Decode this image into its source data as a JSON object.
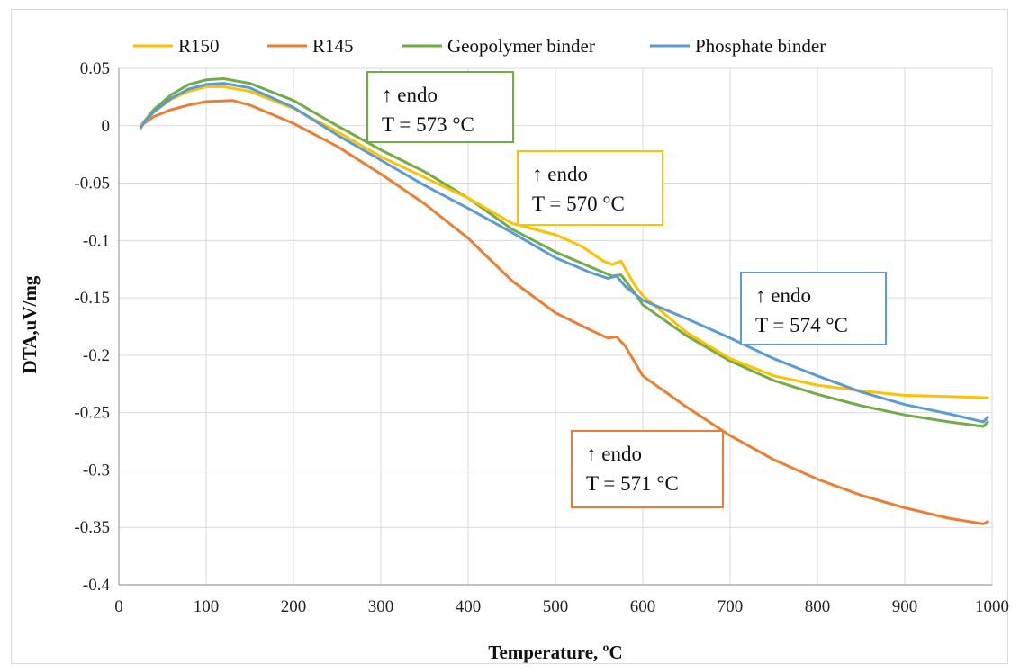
{
  "chart_data": {
    "type": "line",
    "title": "",
    "xlabel": "Temperature, ºC",
    "ylabel": "DTA,uV/mg",
    "xlim": [
      0,
      1000
    ],
    "ylim": [
      -0.4,
      0.05
    ],
    "x_ticks": [
      "0",
      "100",
      "200",
      "300",
      "400",
      "500",
      "600",
      "700",
      "800",
      "900",
      "1000"
    ],
    "y_ticks": [
      "0.05",
      "0",
      "-0.05",
      "-0.1",
      "-0.15",
      "-0.2",
      "-0.25",
      "-0.3",
      "-0.35",
      "-0.4"
    ],
    "grid": true,
    "legend_position": "top",
    "series": [
      {
        "name": "R150",
        "color": "#FFC000",
        "points": [
          [
            25,
            0.0
          ],
          [
            40,
            0.012
          ],
          [
            60,
            0.023
          ],
          [
            80,
            0.03
          ],
          [
            100,
            0.034
          ],
          [
            120,
            0.034
          ],
          [
            150,
            0.03
          ],
          [
            200,
            0.015
          ],
          [
            250,
            -0.005
          ],
          [
            300,
            -0.027
          ],
          [
            350,
            -0.045
          ],
          [
            400,
            -0.063
          ],
          [
            450,
            -0.085
          ],
          [
            500,
            -0.095
          ],
          [
            530,
            -0.105
          ],
          [
            555,
            -0.118
          ],
          [
            565,
            -0.121
          ],
          [
            575,
            -0.118
          ],
          [
            590,
            -0.138
          ],
          [
            600,
            -0.148
          ],
          [
            650,
            -0.18
          ],
          [
            700,
            -0.203
          ],
          [
            750,
            -0.218
          ],
          [
            800,
            -0.226
          ],
          [
            850,
            -0.231
          ],
          [
            900,
            -0.235
          ],
          [
            950,
            -0.236
          ],
          [
            995,
            -0.237
          ]
        ]
      },
      {
        "name": "R145",
        "color": "#ED7D31",
        "points": [
          [
            25,
            0.0
          ],
          [
            40,
            0.008
          ],
          [
            60,
            0.014
          ],
          [
            80,
            0.018
          ],
          [
            100,
            0.021
          ],
          [
            130,
            0.022
          ],
          [
            150,
            0.018
          ],
          [
            200,
            0.002
          ],
          [
            250,
            -0.018
          ],
          [
            300,
            -0.042
          ],
          [
            350,
            -0.068
          ],
          [
            400,
            -0.098
          ],
          [
            450,
            -0.135
          ],
          [
            500,
            -0.163
          ],
          [
            540,
            -0.178
          ],
          [
            560,
            -0.185
          ],
          [
            570,
            -0.184
          ],
          [
            580,
            -0.192
          ],
          [
            600,
            -0.218
          ],
          [
            650,
            -0.245
          ],
          [
            700,
            -0.27
          ],
          [
            750,
            -0.291
          ],
          [
            800,
            -0.308
          ],
          [
            850,
            -0.322
          ],
          [
            900,
            -0.333
          ],
          [
            950,
            -0.342
          ],
          [
            990,
            -0.347
          ],
          [
            995,
            -0.345
          ]
        ]
      },
      {
        "name": "Geopolymer binder",
        "color": "#70AD47",
        "points": [
          [
            25,
            0.0
          ],
          [
            40,
            0.014
          ],
          [
            60,
            0.027
          ],
          [
            80,
            0.036
          ],
          [
            100,
            0.04
          ],
          [
            120,
            0.041
          ],
          [
            150,
            0.037
          ],
          [
            200,
            0.022
          ],
          [
            250,
            0.0
          ],
          [
            300,
            -0.021
          ],
          [
            350,
            -0.04
          ],
          [
            400,
            -0.063
          ],
          [
            450,
            -0.09
          ],
          [
            500,
            -0.11
          ],
          [
            540,
            -0.123
          ],
          [
            565,
            -0.131
          ],
          [
            575,
            -0.13
          ],
          [
            590,
            -0.145
          ],
          [
            600,
            -0.156
          ],
          [
            650,
            -0.183
          ],
          [
            700,
            -0.205
          ],
          [
            750,
            -0.222
          ],
          [
            800,
            -0.234
          ],
          [
            850,
            -0.244
          ],
          [
            900,
            -0.252
          ],
          [
            950,
            -0.258
          ],
          [
            990,
            -0.262
          ],
          [
            995,
            -0.258
          ]
        ]
      },
      {
        "name": "Phosphate binder",
        "color": "#5B9BD5",
        "points": [
          [
            25,
            -0.002
          ],
          [
            30,
            0.004
          ],
          [
            40,
            0.012
          ],
          [
            60,
            0.024
          ],
          [
            80,
            0.032
          ],
          [
            100,
            0.036
          ],
          [
            120,
            0.037
          ],
          [
            150,
            0.033
          ],
          [
            200,
            0.016
          ],
          [
            250,
            -0.008
          ],
          [
            300,
            -0.03
          ],
          [
            350,
            -0.052
          ],
          [
            400,
            -0.072
          ],
          [
            450,
            -0.093
          ],
          [
            500,
            -0.115
          ],
          [
            540,
            -0.128
          ],
          [
            560,
            -0.133
          ],
          [
            570,
            -0.131
          ],
          [
            580,
            -0.14
          ],
          [
            600,
            -0.152
          ],
          [
            650,
            -0.168
          ],
          [
            700,
            -0.185
          ],
          [
            750,
            -0.203
          ],
          [
            800,
            -0.218
          ],
          [
            850,
            -0.232
          ],
          [
            900,
            -0.243
          ],
          [
            950,
            -0.251
          ],
          [
            990,
            -0.258
          ],
          [
            995,
            -0.254
          ]
        ]
      }
    ],
    "annotations": [
      {
        "series": "Geopolymer binder",
        "line1": "↑ endo",
        "line2": "T = 573 °C",
        "color": "#70AD47"
      },
      {
        "series": "R150",
        "line1": "↑ endo",
        "line2": "T = 570 °C",
        "color": "#FFC000"
      },
      {
        "series": "Phosphate binder",
        "line1": "↑ endo",
        "line2": "T = 574 °C",
        "color": "#5B9BD5"
      },
      {
        "series": "R145",
        "line1": "↑ endo",
        "line2": "T = 571 °C",
        "color": "#ED7D31"
      }
    ]
  }
}
